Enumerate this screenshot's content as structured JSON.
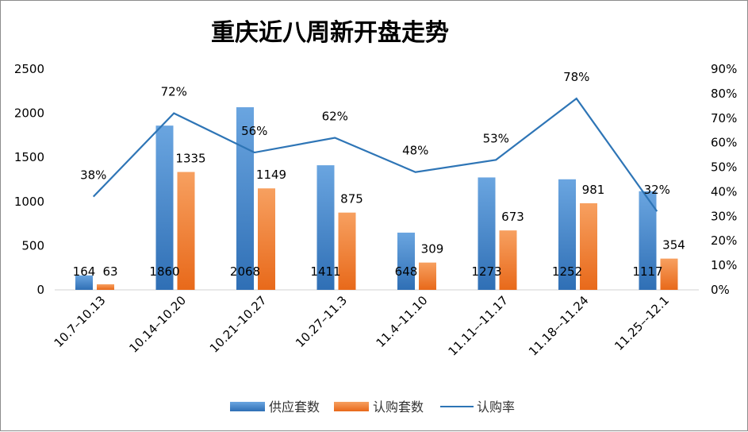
{
  "chart_data": {
    "type": "bar",
    "title": "重庆近八周新开盘走势",
    "categories": [
      "10.7–10.13",
      "10.14–10.20",
      "10.21–10.27",
      "10.27–11.3",
      "11.4–11.10",
      "11.11–-11.17",
      "11.18–-11.24",
      "11.25–-12.1"
    ],
    "series": [
      {
        "name": "供应套数",
        "type": "bar",
        "axis": "left",
        "color": "#4f8ed0",
        "values": [
          164,
          1860,
          2068,
          1411,
          648,
          1273,
          1252,
          1117
        ]
      },
      {
        "name": "认购套数",
        "type": "bar",
        "axis": "left",
        "color": "#f07f2e",
        "values": [
          63,
          1335,
          1149,
          875,
          309,
          673,
          981,
          354
        ]
      },
      {
        "name": "认购率",
        "type": "line",
        "axis": "right",
        "color": "#2e75b6",
        "values": [
          38,
          72,
          56,
          62,
          48,
          53,
          78,
          32
        ]
      }
    ],
    "rate_labels": [
      "38%",
      "72%",
      "56%",
      "62%",
      "48%",
      "53%",
      "78%",
      "32%"
    ],
    "y_left": {
      "min": 0,
      "max": 2500,
      "ticks": [
        "0",
        "500",
        "1000",
        "1500",
        "2000",
        "2500"
      ]
    },
    "y_right": {
      "min": 0,
      "max": 90,
      "ticks": [
        "0%",
        "10%",
        "20%",
        "30%",
        "40%",
        "50%",
        "60%",
        "70%",
        "80%",
        "90%"
      ]
    },
    "legend": [
      "供应套数",
      "认购套数",
      "认购率"
    ],
    "legend_position": "bottom"
  }
}
